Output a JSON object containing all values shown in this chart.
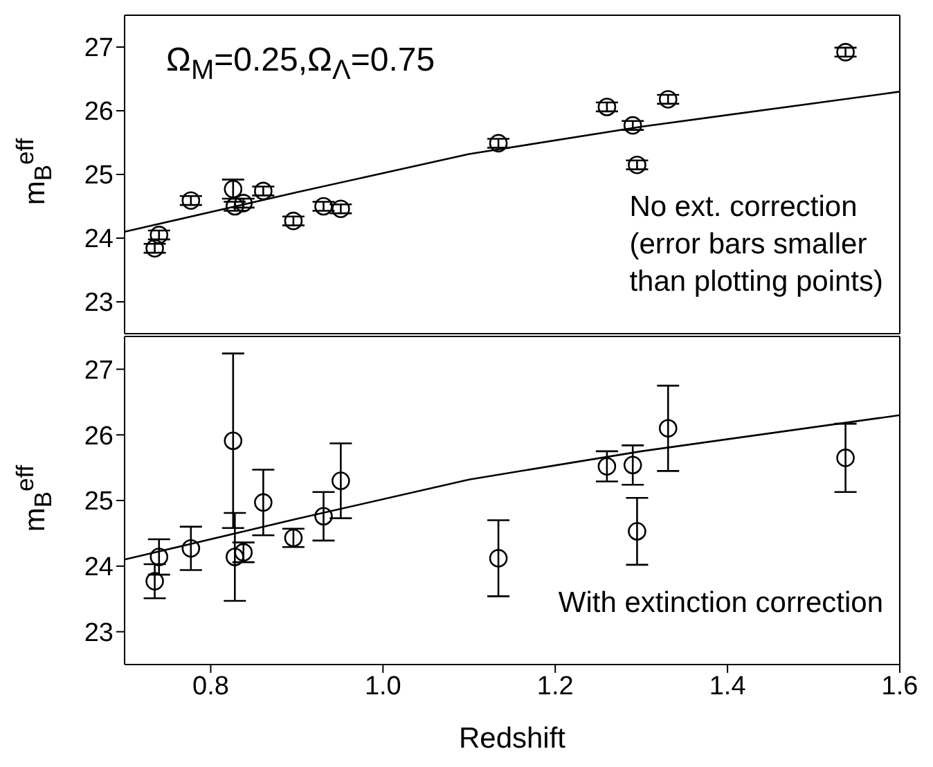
{
  "chart_data": [
    {
      "type": "scatter",
      "ylabel": "m$_{B}$$^{eff}$",
      "xlim": [
        0.7,
        1.6
      ],
      "xticks": [
        0.8,
        1,
        1.2,
        1.4,
        1.6
      ],
      "ylim": [
        22.5,
        27.5
      ],
      "yticks": [
        23,
        24,
        25,
        26,
        27
      ],
      "tick_labels": "y",
      "marker": "circle",
      "annotations": [
        "Ω$_{M}$=0.25,Ω$_{Λ}$=0.75",
        "No ext. correction\n(error bars smaller\nthan plotting points)"
      ],
      "series": [
        {
          "color": "#000000",
          "x": [
            0.735,
            0.74,
            0.777,
            0.826,
            0.828,
            0.838,
            0.861,
            0.896,
            0.931,
            0.951,
            1.134,
            1.26,
            1.29,
            1.331,
            1.295,
            1.537
          ],
          "values": [
            23.84,
            24.05,
            24.59,
            24.77,
            24.5,
            24.55,
            24.74,
            24.27,
            24.5,
            24.46,
            25.49,
            26.06,
            25.77,
            26.18,
            25.15,
            26.92
          ],
          "errors": [
            0.07,
            0.07,
            0.07,
            0.15,
            0.07,
            0.07,
            0.07,
            0.07,
            0.07,
            0.07,
            0.07,
            0.07,
            0.07,
            0.07,
            0.07,
            0.07
          ]
        },
        {
          "type": "line",
          "color": "#000000",
          "marker": "none",
          "x": [
            0.7,
            0.9,
            1.1,
            1.3,
            1.6
          ],
          "values": [
            24.1,
            24.72,
            25.32,
            25.75,
            26.3
          ]
        }
      ]
    },
    {
      "type": "scatter",
      "ylabel": "m$_{B}$$^{eff}$",
      "xlabel": "Redshift",
      "xlim": [
        0.7,
        1.6
      ],
      "xticks": [
        0.8,
        {
          "value": 1.0,
          "label": "1.0"
        },
        1.2,
        1.4,
        1.6
      ],
      "ylim": [
        22.5,
        27.5
      ],
      "yticks": [
        23,
        24,
        25,
        26,
        27
      ],
      "marker": "circle",
      "annotations": [
        "With extinction correction"
      ],
      "series": [
        {
          "color": "#000000",
          "x": [
            0.735,
            0.74,
            0.777,
            0.826,
            0.828,
            0.838,
            0.861,
            0.896,
            0.931,
            0.951,
            1.134,
            1.26,
            1.29,
            1.331,
            1.295,
            1.537
          ],
          "values": [
            23.77,
            24.14,
            24.27,
            25.91,
            24.14,
            24.21,
            24.97,
            24.43,
            24.76,
            25.3,
            24.12,
            25.52,
            25.54,
            26.1,
            24.53,
            25.65
          ],
          "errors": [
            0.26,
            0.27,
            0.33,
            1.33,
            0.67,
            0.15,
            0.5,
            0.14,
            0.37,
            0.57,
            0.58,
            0.23,
            0.3,
            0.65,
            0.51,
            0.52
          ]
        },
        {
          "type": "line",
          "color": "#000000",
          "marker": "none",
          "x": [
            0.7,
            0.9,
            1.1,
            1.3,
            1.6
          ],
          "values": [
            24.1,
            24.72,
            25.32,
            25.75,
            26.3
          ]
        }
      ]
    }
  ]
}
